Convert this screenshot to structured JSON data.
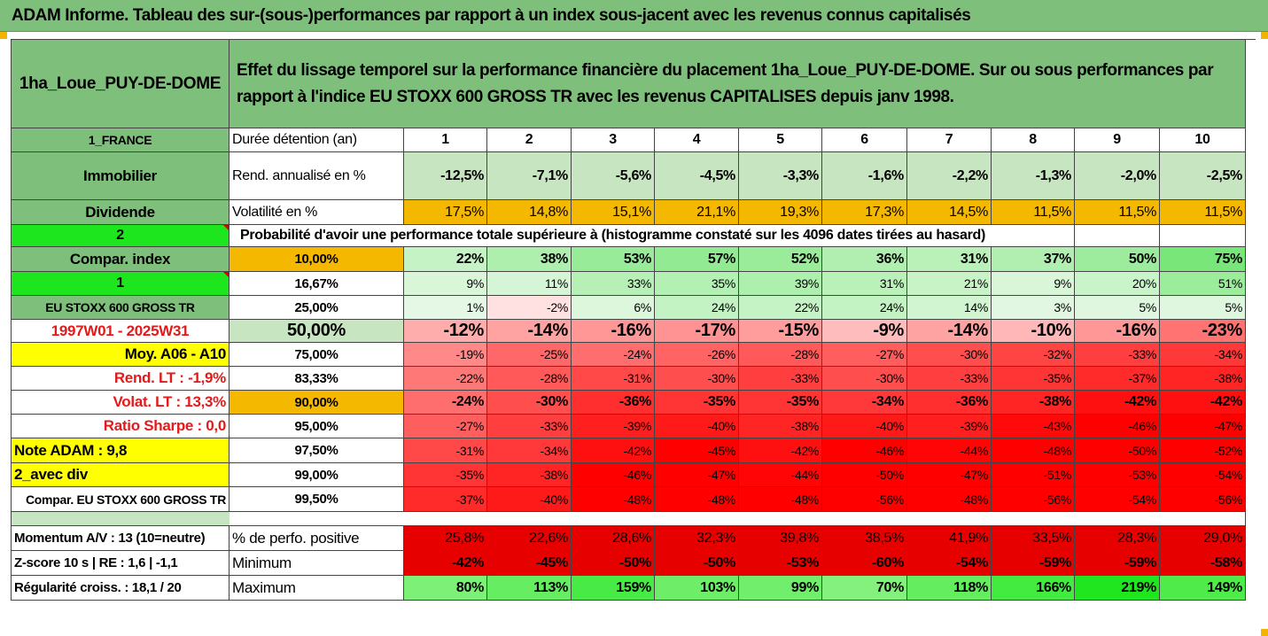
{
  "header": {
    "title": "ADAM Informe. Tableau des sur-(sous-)performances par rapport à un index sous-jacent avec les revenus connus capitalisés"
  },
  "summary": {
    "asset_name": "1ha_Loue_PUY-DE-DOME",
    "description": "Effet du lissage temporel sur la performance financière du placement 1ha_Loue_PUY-DE-DOME. Sur ou sous performances par rapport à l'indice EU STOXX 600 GROSS TR avec les revenus CAPITALISES depuis janv 1998."
  },
  "left_labels": {
    "country": "1_FRANCE",
    "category": "Immobilier",
    "dividend": "Dividende",
    "code2": "2",
    "compar_index": "Compar. index",
    "code1": "1",
    "index_name": "EU STOXX 600 GROSS TR",
    "period": "1997W01 - 2025W31",
    "moy": "Moy. A06 - A10",
    "rend_lt": "Rend. LT :   -1,9%",
    "volat_lt": "Volat. LT :   13,3%",
    "sharpe": "Ratio Sharpe :   0,0",
    "note": "Note ADAM : 9,8",
    "avec_div": "2_avec div",
    "compar_full": "Compar. EU STOXX 600 GROSS TR",
    "momentum": "Momentum A/V : 13 (10=neutre)",
    "zscore": "Z-score 10 s  | RE : 1,6 | -1,1",
    "regularite": "Régularité croiss. : 18,1 / 20"
  },
  "table": {
    "holding_label": "Durée détention (an)",
    "years": [
      "1",
      "2",
      "3",
      "4",
      "5",
      "6",
      "7",
      "8",
      "9",
      "10"
    ],
    "rend_label": "Rend. annualisé en %",
    "rend": [
      "-12,5%",
      "-7,1%",
      "-5,6%",
      "-4,5%",
      "-3,3%",
      "-1,6%",
      "-2,2%",
      "-1,3%",
      "-2,0%",
      "-2,5%"
    ],
    "vol_label": "Volatilité en %",
    "vol": [
      "17,5%",
      "14,8%",
      "15,1%",
      "21,1%",
      "19,3%",
      "17,3%",
      "14,5%",
      "11,5%",
      "11,5%",
      "11,5%"
    ],
    "prob_label": "Probabilité d'avoir une performance totale supérieure à (histogramme constaté sur les 4096 dates tirées au hasard)",
    "quantiles": [
      {
        "level": "10,00%",
        "values": [
          "22%",
          "38%",
          "53%",
          "57%",
          "52%",
          "36%",
          "31%",
          "37%",
          "50%",
          "75%"
        ]
      },
      {
        "level": "16,67%",
        "values": [
          "9%",
          "11%",
          "33%",
          "35%",
          "39%",
          "31%",
          "21%",
          "9%",
          "20%",
          "51%"
        ]
      },
      {
        "level": "25,00%",
        "values": [
          "1%",
          "-2%",
          "6%",
          "24%",
          "22%",
          "24%",
          "14%",
          "3%",
          "5%",
          "5%"
        ]
      },
      {
        "level": "50,00%",
        "values": [
          "-12%",
          "-14%",
          "-16%",
          "-17%",
          "-15%",
          "-9%",
          "-14%",
          "-10%",
          "-16%",
          "-23%"
        ]
      },
      {
        "level": "75,00%",
        "values": [
          "-19%",
          "-25%",
          "-24%",
          "-26%",
          "-28%",
          "-27%",
          "-30%",
          "-32%",
          "-33%",
          "-34%"
        ]
      },
      {
        "level": "83,33%",
        "values": [
          "-22%",
          "-28%",
          "-31%",
          "-30%",
          "-33%",
          "-30%",
          "-33%",
          "-35%",
          "-37%",
          "-38%"
        ]
      },
      {
        "level": "90,00%",
        "values": [
          "-24%",
          "-30%",
          "-36%",
          "-35%",
          "-35%",
          "-34%",
          "-36%",
          "-38%",
          "-42%",
          "-42%"
        ]
      },
      {
        "level": "95,00%",
        "values": [
          "-27%",
          "-33%",
          "-39%",
          "-40%",
          "-38%",
          "-40%",
          "-39%",
          "-43%",
          "-46%",
          "-47%"
        ]
      },
      {
        "level": "97,50%",
        "values": [
          "-31%",
          "-34%",
          "-42%",
          "-45%",
          "-42%",
          "-46%",
          "-44%",
          "-48%",
          "-50%",
          "-52%"
        ]
      },
      {
        "level": "99,00%",
        "values": [
          "-35%",
          "-38%",
          "-46%",
          "-47%",
          "-44%",
          "-50%",
          "-47%",
          "-51%",
          "-53%",
          "-54%"
        ]
      },
      {
        "level": "99,50%",
        "values": [
          "-37%",
          "-40%",
          "-48%",
          "-48%",
          "-48%",
          "-56%",
          "-48%",
          "-56%",
          "-54%",
          "-56%"
        ]
      }
    ],
    "pos_label": "% de perfo. positive",
    "pos": [
      "25,8%",
      "22,6%",
      "28,6%",
      "32,3%",
      "39,8%",
      "38,5%",
      "41,9%",
      "33,5%",
      "28,3%",
      "29,0%"
    ],
    "min_label": "Minimum",
    "min": [
      "-42%",
      "-45%",
      "-50%",
      "-50%",
      "-53%",
      "-60%",
      "-54%",
      "-59%",
      "-59%",
      "-58%"
    ],
    "max_label": "Maximum",
    "max": [
      "80%",
      "113%",
      "159%",
      "103%",
      "99%",
      "70%",
      "118%",
      "166%",
      "219%",
      "149%"
    ]
  },
  "colors": {
    "header_green": "#7ec07b",
    "light_green": "#c7e5c0",
    "orange": "#f5b800",
    "bright_green": "#1ee61e",
    "yellow": "#ffff00",
    "red_text": "#e41a1a",
    "deep_red": "#e60000"
  }
}
